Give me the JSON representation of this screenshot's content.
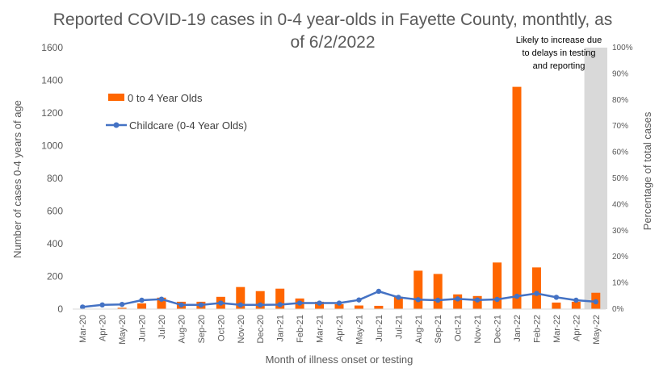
{
  "chart_data": {
    "type": "bar",
    "title_line1": "Reported COVID-19 cases in 0-4 year-olds in Fayette County, monthtly, as",
    "title_line2": "of 6/2/2022",
    "xlabel": "Month of illness onset or testing",
    "ylabel": "Number of cases 0-4 years of age",
    "y2label": "Percentage of total cases",
    "ylim": [
      0,
      1600
    ],
    "y_ticks": [
      "0",
      "200",
      "400",
      "600",
      "800",
      "1000",
      "1200",
      "1400",
      "1600"
    ],
    "y2lim": [
      0,
      100
    ],
    "y2_ticks": [
      "0%",
      "10%",
      "20%",
      "30%",
      "40%",
      "50%",
      "60%",
      "70%",
      "80%",
      "90%",
      "100%"
    ],
    "categories": [
      "Mar-20",
      "Apr-20",
      "May-20",
      "Jun-20",
      "Jul-20",
      "Aug-20",
      "Sep-20",
      "Oct-20",
      "Nov-20",
      "Dec-20",
      "Jan-21",
      "Feb-21",
      "Mar-21",
      "Apr-21",
      "May-21",
      "Jun-21",
      "Jul-21",
      "Aug-21",
      "Sep-21",
      "Oct-21",
      "Nov-21",
      "Dec-21",
      "Jan-22",
      "Feb-22",
      "Mar-22",
      "Apr-22",
      "May-22"
    ],
    "series": [
      {
        "name": "0 to 4 Year Olds",
        "kind": "bar",
        "axis": "left",
        "color": "#FF6600",
        "values": [
          0,
          2,
          8,
          35,
          70,
          45,
          45,
          75,
          135,
          110,
          125,
          65,
          45,
          30,
          22,
          20,
          75,
          235,
          215,
          90,
          80,
          285,
          1360,
          255,
          40,
          45,
          100
        ]
      },
      {
        "name": "Childcare (0-4 Year Olds)",
        "kind": "line",
        "axis": "right",
        "color": "#4472C4",
        "values": [
          0.8,
          1.6,
          1.8,
          3.4,
          3.8,
          1.6,
          1.6,
          2.3,
          1.6,
          1.6,
          1.7,
          2.3,
          2.3,
          2.3,
          3.5,
          6.8,
          4.5,
          3.6,
          3.4,
          3.9,
          3.5,
          3.7,
          4.9,
          6.0,
          4.5,
          3.4,
          2.8
        ]
      }
    ],
    "annotation": {
      "lines": [
        "Likely to increase due",
        "to delays in testing",
        "and reporting"
      ],
      "shaded_category": "May-22",
      "shade_color": "#D9D9D9"
    },
    "legend_position": "top-left",
    "grid": false
  }
}
